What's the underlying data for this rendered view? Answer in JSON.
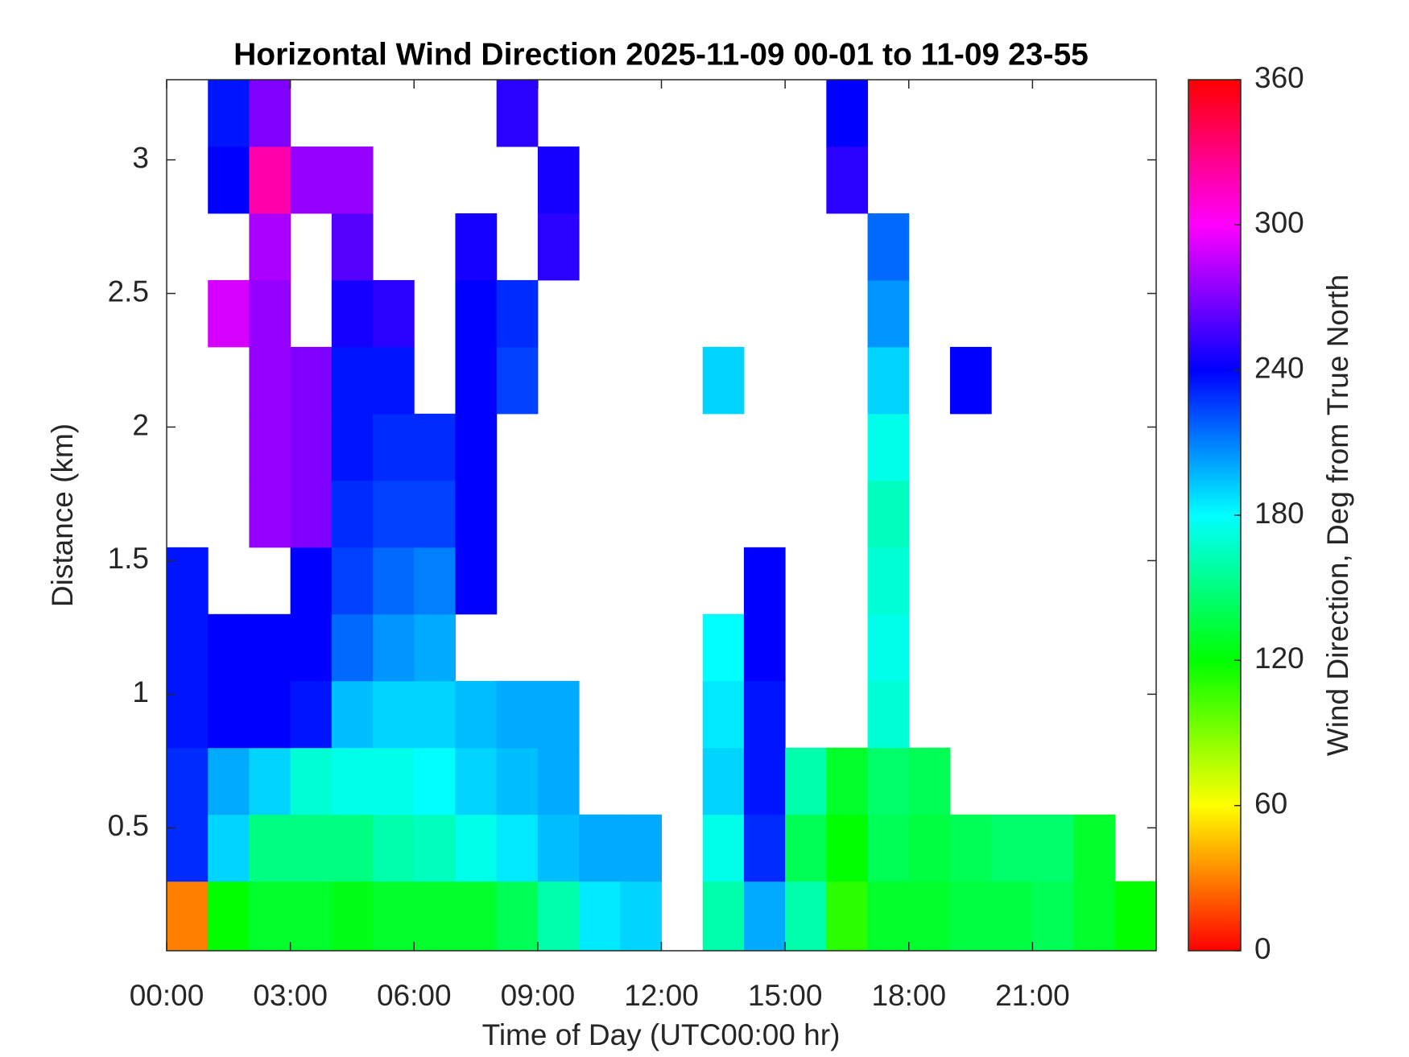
{
  "chart_data": {
    "type": "heatmap",
    "title": "Horizontal Wind Direction 2025-11-09 00-01 to 11-09 23-55",
    "x_label": "Time of Day (UTC00:00 hr)",
    "y_label": "Distance (km)",
    "colorbar_label": "Wind Direction, Deg from True North",
    "colormap": "hsv",
    "x_edges": [
      0,
      1,
      2,
      3,
      4,
      5,
      6,
      7,
      8,
      9,
      10,
      11,
      12,
      13,
      14,
      15,
      16,
      17,
      18,
      19,
      20,
      21,
      22,
      23,
      24
    ],
    "y_edges": [
      0.04,
      0.3,
      0.55,
      0.8,
      1.05,
      1.3,
      1.55,
      1.8,
      2.05,
      2.3,
      2.55,
      2.8,
      3.05,
      3.3
    ],
    "values": [
      [
        30,
        120,
        130,
        130,
        125,
        130,
        130,
        130,
        140,
        160,
        185,
        190,
        null,
        160,
        200,
        160,
        110,
        130,
        130,
        135,
        135,
        140,
        130,
        120
      ],
      [
        230,
        190,
        150,
        150,
        150,
        160,
        165,
        175,
        185,
        195,
        200,
        200,
        null,
        175,
        230,
        140,
        120,
        140,
        135,
        140,
        145,
        145,
        130,
        null
      ],
      [
        230,
        200,
        190,
        170,
        175,
        175,
        180,
        190,
        195,
        200,
        null,
        null,
        null,
        190,
        235,
        160,
        130,
        145,
        140,
        null,
        null,
        null,
        null,
        null
      ],
      [
        235,
        240,
        240,
        235,
        195,
        190,
        190,
        195,
        200,
        200,
        null,
        null,
        null,
        185,
        235,
        null,
        null,
        170,
        null,
        null,
        null,
        null,
        null,
        null
      ],
      [
        235,
        240,
        240,
        240,
        215,
        205,
        200,
        null,
        null,
        null,
        null,
        null,
        null,
        180,
        240,
        null,
        null,
        175,
        null,
        null,
        null,
        null,
        null,
        null
      ],
      [
        235,
        null,
        null,
        240,
        225,
        215,
        210,
        240,
        null,
        null,
        null,
        null,
        null,
        null,
        240,
        null,
        null,
        170,
        null,
        null,
        null,
        null,
        null,
        null
      ],
      [
        null,
        null,
        275,
        270,
        230,
        225,
        225,
        240,
        null,
        null,
        null,
        null,
        null,
        null,
        null,
        null,
        null,
        165,
        null,
        null,
        null,
        null,
        null,
        null
      ],
      [
        null,
        null,
        275,
        270,
        235,
        230,
        230,
        240,
        null,
        null,
        null,
        null,
        null,
        null,
        null,
        null,
        null,
        175,
        null,
        null,
        null,
        null,
        null,
        null
      ],
      [
        null,
        null,
        275,
        270,
        235,
        235,
        null,
        240,
        225,
        null,
        null,
        null,
        null,
        190,
        null,
        null,
        null,
        190,
        null,
        240,
        null,
        null,
        null,
        null
      ],
      [
        null,
        290,
        275,
        null,
        245,
        250,
        null,
        240,
        230,
        null,
        null,
        null,
        null,
        null,
        null,
        null,
        null,
        205,
        null,
        null,
        null,
        null,
        null,
        null
      ],
      [
        null,
        null,
        280,
        null,
        260,
        null,
        null,
        245,
        null,
        250,
        null,
        null,
        null,
        null,
        null,
        null,
        null,
        215,
        null,
        null,
        null,
        null,
        null,
        null
      ],
      [
        null,
        240,
        320,
        275,
        275,
        null,
        null,
        null,
        null,
        245,
        null,
        null,
        null,
        null,
        null,
        null,
        250,
        null,
        null,
        null,
        null,
        null,
        null,
        null
      ],
      [
        null,
        235,
        270,
        null,
        null,
        null,
        null,
        null,
        250,
        null,
        null,
        null,
        null,
        null,
        null,
        null,
        240,
        null,
        null,
        null,
        null,
        null,
        null,
        null
      ]
    ],
    "xlim": [
      0,
      24
    ],
    "xticks": [
      {
        "value": 0,
        "label": "00:00"
      },
      {
        "value": 3,
        "label": "03:00"
      },
      {
        "value": 6,
        "label": "06:00"
      },
      {
        "value": 9,
        "label": "09:00"
      },
      {
        "value": 12,
        "label": "12:00"
      },
      {
        "value": 15,
        "label": "15:00"
      },
      {
        "value": 18,
        "label": "18:00"
      },
      {
        "value": 21,
        "label": "21:00"
      }
    ],
    "ylim": [
      0.04,
      3.3
    ],
    "yticks": [
      0.5,
      1,
      1.5,
      2,
      2.5,
      3
    ],
    "zlim": [
      0,
      360
    ],
    "zticks": [
      0,
      60,
      120,
      180,
      240,
      300,
      360
    ]
  }
}
